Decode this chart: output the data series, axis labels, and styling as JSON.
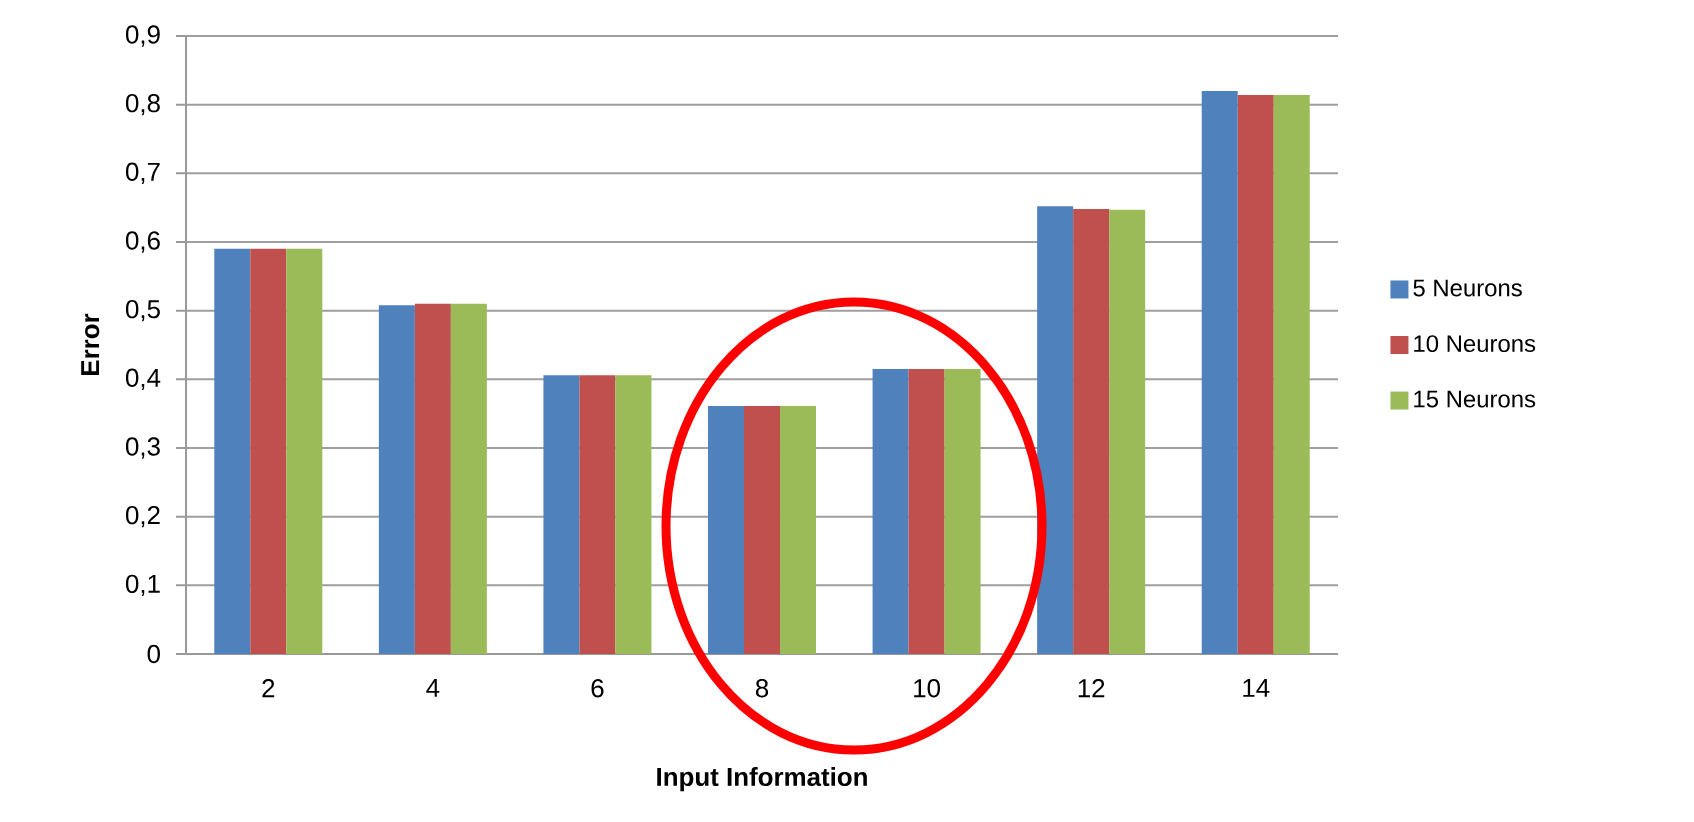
{
  "chart_data": {
    "type": "bar",
    "xlabel": "Input Information",
    "ylabel": "Error",
    "categories": [
      "2",
      "4",
      "6",
      "8",
      "10",
      "12",
      "14"
    ],
    "series": [
      {
        "name": "5 Neurons",
        "color": "#4f81bd",
        "values": [
          0.59,
          0.508,
          0.406,
          0.361,
          0.415,
          0.652,
          0.82
        ]
      },
      {
        "name": "10 Neurons",
        "color": "#c0504d",
        "values": [
          0.59,
          0.51,
          0.406,
          0.361,
          0.415,
          0.648,
          0.814
        ]
      },
      {
        "name": "15 Neurons",
        "color": "#9bbb59",
        "values": [
          0.59,
          0.51,
          0.406,
          0.361,
          0.415,
          0.647,
          0.814
        ]
      }
    ],
    "ylim": [
      0,
      0.9
    ],
    "yticks": [
      0,
      {
        "value": 0.1,
        "label": "0,1"
      },
      {
        "value": 0.2,
        "label": "0,2"
      },
      {
        "value": 0.3,
        "label": "0,3"
      },
      {
        "value": 0.4,
        "label": "0,4"
      },
      {
        "value": 0.5,
        "label": "0,5"
      },
      {
        "value": 0.6,
        "label": "0,6"
      },
      {
        "value": 0.7,
        "label": "0,7"
      },
      {
        "value": 0.8,
        "label": "0,8"
      },
      {
        "value": 0.9,
        "label": "0,9"
      }
    ],
    "grid": "y",
    "legend": "right"
  }
}
